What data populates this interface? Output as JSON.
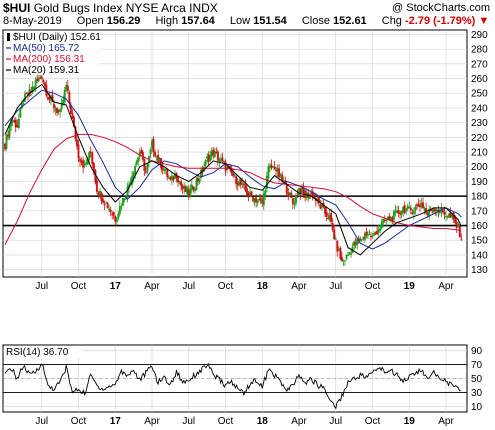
{
  "header": {
    "symbol": "$HUI",
    "name": "Gold Bugs Index",
    "exchange": "NYSE Arca INDX",
    "watermark": "@ StockCharts.com",
    "date": "8-May-2019",
    "open_label": "Open",
    "open": "156.29",
    "high_label": "High",
    "high": "157.64",
    "low_label": "Low",
    "low": "151.54",
    "close_label": "Close",
    "close": "152.61",
    "chg_label": "Chg",
    "chg": "-2.79 (-1.79%)",
    "chg_arrow": "▼"
  },
  "legend": [
    {
      "label": "$HUI (Daily) 152.61",
      "color": "#000000",
      "marker": "candle"
    },
    {
      "label": "MA(50) 165.72",
      "color": "#1a2a9a",
      "marker": "line"
    },
    {
      "label": "MA(200) 156.31",
      "color": "#d01030",
      "marker": "line"
    },
    {
      "label": "MA(20) 159.31",
      "color": "#000000",
      "marker": "line"
    }
  ],
  "rsi_label": "RSI(14) 36.70",
  "colors": {
    "up": "#1aa01a",
    "down": "#d01010",
    "ma50": "#1a2a9a",
    "ma200": "#d01030",
    "ma20": "#000000",
    "grid": "#d0d0d0"
  },
  "chart_data": [
    {
      "type": "line",
      "title": "$HUI Gold Bugs Index (Daily)",
      "ylim": [
        125,
        293
      ],
      "yticks": [
        130,
        140,
        150,
        160,
        170,
        180,
        190,
        200,
        210,
        220,
        230,
        240,
        250,
        260,
        270,
        280,
        290
      ],
      "x_labels": [
        "Jul",
        "Oct",
        "17",
        "Apr",
        "Jul",
        "Oct",
        "18",
        "Apr",
        "Jul",
        "Oct",
        "19",
        "Apr"
      ],
      "x_label_months": [
        3,
        6,
        9,
        12,
        15,
        18,
        21,
        24,
        27,
        30,
        33,
        36
      ],
      "horizontal_lines": [
        180,
        160
      ],
      "series": [
        {
          "name": "$HUI",
          "kind": "close",
          "months": [
            0,
            0.5,
            1,
            1.5,
            2,
            2.5,
            3,
            3.5,
            4,
            4.5,
            5,
            5.5,
            6,
            6.5,
            7,
            7.5,
            8,
            8.5,
            9,
            9.5,
            10,
            10.5,
            11,
            11.5,
            12,
            12.5,
            13,
            13.5,
            14,
            14.5,
            15,
            15.5,
            16,
            16.5,
            17,
            17.5,
            18,
            18.5,
            19,
            19.5,
            20,
            20.5,
            21,
            21.5,
            22,
            22.5,
            23,
            23.5,
            24,
            24.5,
            25,
            25.5,
            26,
            26.5,
            27,
            27.5,
            28,
            28.5,
            29,
            29.5,
            30,
            30.5,
            31,
            31.5,
            32,
            32.5,
            33,
            33.5,
            34,
            34.5,
            35,
            35.5,
            36,
            36.5,
            37,
            37.25
          ],
          "values": [
            215,
            232,
            228,
            245,
            250,
            257,
            262,
            248,
            241,
            236,
            255,
            232,
            208,
            200,
            210,
            185,
            178,
            172,
            165,
            175,
            185,
            198,
            210,
            196,
            215,
            205,
            198,
            190,
            195,
            185,
            182,
            188,
            195,
            205,
            210,
            205,
            200,
            195,
            190,
            185,
            180,
            178,
            175,
            198,
            200,
            192,
            185,
            175,
            185,
            180,
            182,
            176,
            170,
            165,
            148,
            135,
            140,
            147,
            150,
            155,
            152,
            158,
            163,
            165,
            168,
            172,
            170,
            172,
            175,
            168,
            173,
            170,
            168,
            165,
            158,
            152
          ]
        },
        {
          "name": "MA(50)",
          "kind": "ma",
          "months": [
            0,
            1,
            2,
            3,
            4,
            5,
            6,
            7,
            8,
            9,
            10,
            11,
            12,
            13,
            14,
            15,
            16,
            17,
            18,
            19,
            20,
            21,
            22,
            23,
            24,
            25,
            26,
            27,
            28,
            29,
            30,
            31,
            32,
            33,
            34,
            35,
            36,
            37,
            37.25
          ],
          "values": [
            228,
            238,
            245,
            252,
            250,
            246,
            235,
            218,
            203,
            186,
            178,
            186,
            198,
            204,
            202,
            197,
            193,
            196,
            202,
            200,
            193,
            187,
            185,
            190,
            187,
            183,
            178,
            174,
            162,
            148,
            144,
            148,
            154,
            160,
            164,
            168,
            172,
            168,
            165.72
          ]
        },
        {
          "name": "MA(200)",
          "kind": "ma",
          "months": [
            0,
            1,
            2,
            3,
            4,
            5,
            6,
            7,
            8,
            9,
            10,
            11,
            12,
            13,
            14,
            15,
            16,
            17,
            18,
            19,
            20,
            21,
            22,
            23,
            24,
            25,
            26,
            27,
            28,
            29,
            30,
            31,
            32,
            33,
            34,
            35,
            36,
            37,
            37.25
          ],
          "values": [
            147,
            163,
            182,
            198,
            212,
            219,
            222,
            222,
            220,
            217,
            213,
            208,
            204,
            202,
            200,
            199,
            199,
            199,
            199,
            198,
            196,
            192,
            189,
            188,
            187,
            186,
            185,
            183,
            179,
            173,
            168,
            165,
            162,
            160,
            159,
            158,
            158,
            157,
            156.31
          ]
        },
        {
          "name": "MA(20)",
          "kind": "ma",
          "months": [
            0,
            1,
            2,
            3,
            4,
            5,
            6,
            7,
            8,
            9,
            10,
            11,
            12,
            13,
            14,
            15,
            16,
            17,
            18,
            19,
            20,
            21,
            22,
            23,
            24,
            25,
            26,
            27,
            28,
            29,
            30,
            31,
            32,
            33,
            34,
            35,
            36,
            37,
            37.25
          ],
          "values": [
            222,
            240,
            250,
            256,
            244,
            242,
            220,
            200,
            186,
            176,
            184,
            200,
            204,
            200,
            194,
            190,
            196,
            204,
            202,
            194,
            186,
            184,
            194,
            188,
            182,
            180,
            174,
            168,
            145,
            140,
            148,
            156,
            162,
            165,
            168,
            172,
            172,
            164,
            159.31
          ]
        }
      ]
    },
    {
      "type": "line",
      "title": "RSI(14)",
      "ylim": [
        2,
        98
      ],
      "yticks": [
        10,
        30,
        50,
        70,
        90
      ],
      "reference_lines": [
        70,
        30
      ],
      "series": [
        {
          "name": "RSI(14)",
          "months": [
            0,
            0.5,
            1,
            1.5,
            2,
            2.5,
            3,
            3.5,
            4,
            4.5,
            5,
            5.5,
            6,
            6.5,
            7,
            7.5,
            8,
            8.5,
            9,
            9.5,
            10,
            10.5,
            11,
            11.5,
            12,
            12.5,
            13,
            13.5,
            14,
            14.5,
            15,
            15.5,
            16,
            16.5,
            17,
            17.5,
            18,
            18.5,
            19,
            19.5,
            20,
            20.5,
            21,
            21.5,
            22,
            22.5,
            23,
            23.5,
            24,
            24.5,
            25,
            25.5,
            26,
            26.5,
            27,
            27.5,
            28,
            28.5,
            29,
            29.5,
            30,
            30.5,
            31,
            31.5,
            32,
            32.5,
            33,
            33.5,
            34,
            34.5,
            35,
            35.5,
            36,
            36.5,
            37,
            37.25
          ],
          "values": [
            55,
            65,
            50,
            68,
            55,
            60,
            72,
            40,
            35,
            45,
            66,
            30,
            35,
            28,
            55,
            40,
            35,
            38,
            42,
            60,
            55,
            62,
            48,
            58,
            68,
            44,
            52,
            40,
            60,
            45,
            48,
            55,
            62,
            70,
            56,
            48,
            40,
            45,
            35,
            30,
            42,
            48,
            38,
            62,
            55,
            45,
            32,
            40,
            55,
            42,
            50,
            40,
            38,
            20,
            10,
            25,
            45,
            50,
            55,
            52,
            58,
            66,
            60,
            62,
            55,
            48,
            52,
            58,
            62,
            48,
            58,
            52,
            46,
            40,
            34,
            36.7
          ]
        }
      ]
    }
  ]
}
